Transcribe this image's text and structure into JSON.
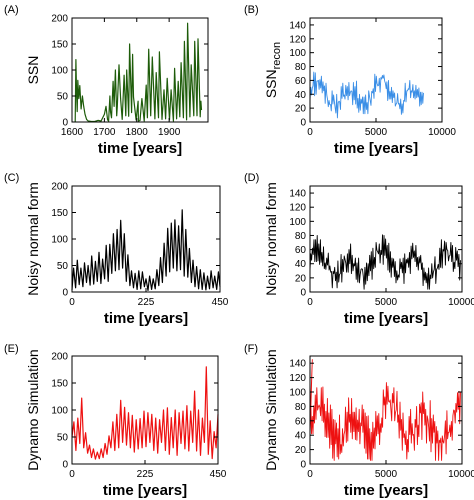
{
  "chart_data": [
    {
      "type": "line",
      "panel_label": "(A)",
      "xlabel": "time [years]",
      "ylabel": "SSN",
      "ylabel_sub": "",
      "xlim": [
        1600,
        2020
      ],
      "ylim": [
        0,
        200
      ],
      "xticks": [
        1600,
        1700,
        1800,
        1900
      ],
      "yticks": [
        0,
        50,
        100,
        150,
        200
      ],
      "color": "#1e5c0a",
      "series": [
        {
          "x": [
            1610,
            1612,
            1614,
            1616,
            1618,
            1621,
            1624,
            1628,
            1632,
            1636,
            1640,
            1645,
            1650,
            1660,
            1670,
            1680,
            1690,
            1700,
            1705,
            1710,
            1713,
            1717,
            1719,
            1722,
            1727,
            1730,
            1734,
            1738,
            1740,
            1745,
            1750,
            1755,
            1761,
            1766,
            1769,
            1775,
            1778,
            1784,
            1787,
            1790,
            1798,
            1804,
            1805,
            1810,
            1816,
            1823,
            1829,
            1833,
            1837,
            1843,
            1848,
            1856,
            1860,
            1867,
            1870,
            1878,
            1884,
            1889,
            1894,
            1901,
            1906,
            1913,
            1917,
            1923,
            1928,
            1933,
            1937,
            1944,
            1947,
            1954,
            1957,
            1964,
            1968,
            1976,
            1979,
            1986,
            1989,
            1996,
            1998,
            2000
          ],
          "y": [
            0,
            120,
            60,
            20,
            80,
            45,
            70,
            25,
            50,
            30,
            15,
            5,
            2,
            1,
            1,
            3,
            2,
            15,
            30,
            4,
            2,
            50,
            20,
            8,
            78,
            30,
            100,
            12,
            30,
            110,
            45,
            5,
            90,
            12,
            100,
            11,
            150,
            18,
            130,
            48,
            4,
            40,
            2,
            3,
            45,
            2,
            71,
            8,
            140,
            12,
            125,
            6,
            95,
            8,
            135,
            5,
            62,
            6,
            84,
            4,
            62,
            2,
            103,
            6,
            78,
            10,
            114,
            8,
            155,
            4,
            190,
            10,
            110,
            12,
            155,
            12,
            160,
            10,
            40,
            23
          ]
        }
      ]
    },
    {
      "type": "line",
      "panel_label": "(B)",
      "xlabel": "time [years]",
      "ylabel": "SSN",
      "ylabel_sub": "recon",
      "xlim": [
        0,
        10000
      ],
      "ylim": [
        0,
        150
      ],
      "xticks": [
        0,
        5000,
        10000
      ],
      "yticks": [
        0,
        20,
        40,
        60,
        80,
        100,
        120,
        140
      ],
      "color": "#3a8ee6",
      "gen": {
        "n": 150,
        "xmax": 8600,
        "base": 40,
        "amp": 13,
        "noise": 13,
        "p1": 2400,
        "p2": 5200,
        "max": 78,
        "min": 5,
        "seed": 11
      }
    },
    {
      "type": "line",
      "panel_label": "(C)",
      "xlabel": "time [years]",
      "ylabel": "Noisy normal form",
      "ylabel_sub": "",
      "xlim": [
        0,
        450
      ],
      "ylim": [
        0,
        200
      ],
      "xticks": [
        0,
        225,
        450
      ],
      "yticks": [
        0,
        50,
        100,
        150,
        200
      ],
      "color": "#000000",
      "series": [
        {
          "x": [
            0,
            5,
            11,
            16,
            22,
            27,
            33,
            38,
            44,
            49,
            55,
            60,
            66,
            71,
            77,
            82,
            88,
            93,
            99,
            104,
            110,
            115,
            121,
            126,
            132,
            137,
            143,
            148,
            154,
            159,
            165,
            170,
            176,
            181,
            187,
            192,
            198,
            203,
            209,
            214,
            220,
            225,
            231,
            236,
            242,
            247,
            253,
            258,
            264,
            269,
            275,
            280,
            286,
            291,
            297,
            302,
            308,
            313,
            319,
            324,
            330,
            335,
            341,
            346,
            352,
            357,
            363,
            368,
            374,
            379,
            385,
            390,
            396,
            401,
            407,
            412,
            418,
            423,
            429,
            434,
            440,
            445,
            450
          ],
          "y": [
            4,
            45,
            8,
            60,
            14,
            45,
            10,
            55,
            18,
            50,
            13,
            68,
            15,
            58,
            20,
            75,
            16,
            62,
            25,
            88,
            20,
            90,
            35,
            110,
            40,
            118,
            42,
            135,
            45,
            110,
            20,
            70,
            12,
            40,
            8,
            35,
            5,
            40,
            6,
            38,
            10,
            25,
            3,
            30,
            5,
            25,
            6,
            42,
            12,
            65,
            18,
            92,
            30,
            120,
            38,
            130,
            45,
            136,
            40,
            125,
            42,
            155,
            30,
            118,
            28,
            82,
            18,
            60,
            10,
            48,
            6,
            42,
            5,
            36,
            4,
            30,
            6,
            40,
            8,
            30,
            5,
            38,
            10
          ]
        }
      ]
    },
    {
      "type": "line",
      "panel_label": "(D)",
      "xlabel": "time [years]",
      "ylabel": "Noisy normal form",
      "ylabel_sub": "",
      "xlim": [
        0,
        10000
      ],
      "ylim": [
        0,
        150
      ],
      "xticks": [
        0,
        5000,
        10000
      ],
      "yticks": [
        0,
        20,
        40,
        60,
        80,
        100,
        120,
        140
      ],
      "color": "#000000",
      "gen": {
        "n": 190,
        "xmax": 9900,
        "base": 40,
        "amp": 14,
        "noise": 14,
        "p1": 2100,
        "p2": 4700,
        "max": 100,
        "min": 4,
        "seed": 23
      }
    },
    {
      "type": "line",
      "panel_label": "(E)",
      "xlabel": "time [years]",
      "ylabel": "Dynamo Simulation",
      "ylabel_sub": "",
      "xlim": [
        0,
        450
      ],
      "ylim": [
        0,
        200
      ],
      "xticks": [
        0,
        225,
        450
      ],
      "yticks": [
        0,
        50,
        100,
        150,
        200
      ],
      "color": "#ee1111",
      "series": [
        {
          "x": [
            0,
            6,
            12,
            18,
            24,
            30,
            36,
            42,
            48,
            54,
            60,
            66,
            72,
            78,
            84,
            90,
            96,
            102,
            108,
            114,
            120,
            126,
            132,
            138,
            144,
            150,
            156,
            162,
            168,
            174,
            180,
            186,
            192,
            198,
            204,
            210,
            216,
            222,
            228,
            234,
            240,
            246,
            252,
            258,
            264,
            270,
            276,
            282,
            288,
            294,
            300,
            306,
            312,
            318,
            324,
            330,
            336,
            342,
            348,
            354,
            360,
            366,
            372,
            378,
            384,
            390,
            396,
            402,
            408,
            414,
            420,
            426,
            432,
            438,
            444,
            450
          ],
          "y": [
            50,
            78,
            25,
            85,
            38,
            122,
            30,
            58,
            20,
            35,
            12,
            28,
            9,
            22,
            10,
            28,
            12,
            38,
            18,
            52,
            30,
            78,
            25,
            92,
            30,
            118,
            40,
            105,
            35,
            95,
            30,
            90,
            22,
            82,
            28,
            84,
            30,
            98,
            32,
            95,
            40,
            92,
            25,
            85,
            20,
            82,
            40,
            100,
            25,
            104,
            18,
            86,
            30,
            100,
            16,
            95,
            38,
            98,
            28,
            108,
            24,
            98,
            40,
            135,
            24,
            100,
            16,
            85,
            40,
            180,
            18,
            80,
            10,
            60,
            30,
            92
          ]
        }
      ]
    },
    {
      "type": "line",
      "panel_label": "(F)",
      "xlabel": "time [years]",
      "ylabel": "Dynamo Simulation",
      "ylabel_sub": "",
      "xlim": [
        0,
        10000
      ],
      "ylim": [
        0,
        150
      ],
      "xticks": [
        0,
        5000,
        10000
      ],
      "yticks": [
        0,
        20,
        40,
        60,
        80,
        100,
        120,
        140
      ],
      "color": "#ee1111",
      "gen": {
        "n": 200,
        "xmax": 9900,
        "base": 55,
        "amp": 20,
        "noise": 22,
        "p1": 2300,
        "p2": 5200,
        "max": 128,
        "min": 5,
        "seed": 37,
        "spike": [
          150,
          145
        ]
      }
    }
  ]
}
